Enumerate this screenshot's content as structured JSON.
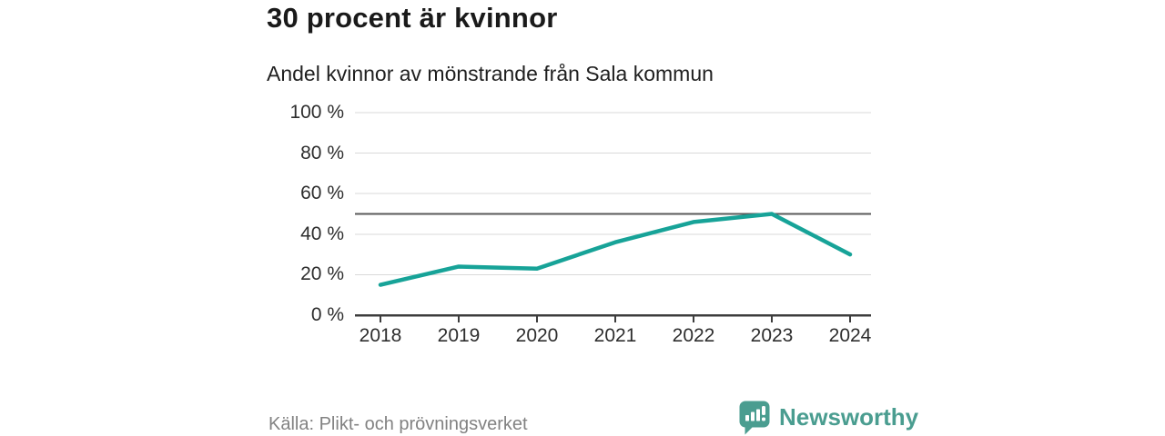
{
  "header": {
    "title": "30 procent är kvinnor",
    "subtitle": "Andel kvinnor av mönstrande från Sala kommun"
  },
  "chart_data": {
    "type": "line",
    "title": "30 procent är kvinnor",
    "subtitle": "Andel kvinnor av mönstrande från Sala kommun",
    "categories": [
      "2018",
      "2019",
      "2020",
      "2021",
      "2022",
      "2023",
      "2024"
    ],
    "series": [
      {
        "name": "Andel kvinnor av mönstrande",
        "values": [
          15,
          24,
          23,
          36,
          46,
          50,
          30
        ]
      }
    ],
    "unit": "%",
    "ylim": [
      0,
      100
    ],
    "yticks": [
      0,
      20,
      40,
      60,
      80,
      100
    ],
    "ytick_labels": [
      "0 %",
      "20 %",
      "40 %",
      "60 %",
      "80 %",
      "100 %"
    ],
    "gridlines": [
      20,
      40,
      60,
      80,
      100
    ],
    "reference_line": 50,
    "grid": true,
    "legend_position": "none"
  },
  "colors": {
    "series_line": "#17a398",
    "brand_teal": "#4a9d90",
    "title_text": "#1a1a1a",
    "axis_text": "#2e2e2e",
    "grid_line": "#d9d9d9",
    "reference_line": "#595959",
    "axis_line": "#3d3d3d",
    "source_text": "#828282"
  },
  "footer": {
    "source": "Källa: Plikt- och prövningsverket",
    "brand": "Newsworthy"
  },
  "icons": {
    "brand_logo": "speech-bubble-bar-chart-icon"
  }
}
